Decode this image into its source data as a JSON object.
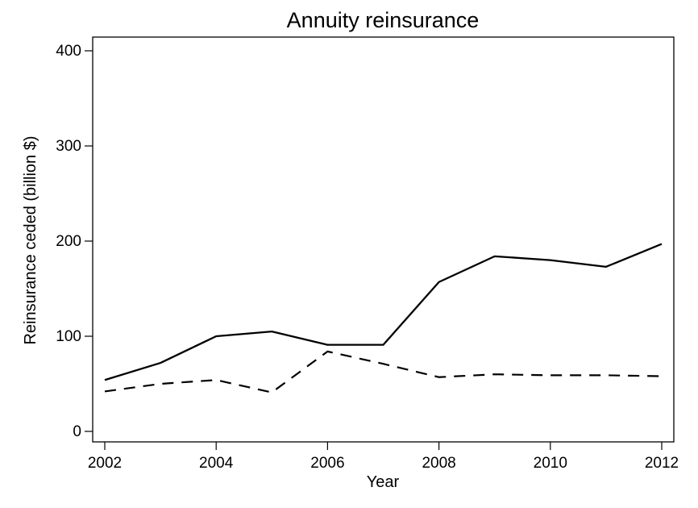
{
  "chart_data": {
    "type": "line",
    "title": "Annuity reinsurance",
    "xlabel": "Year",
    "ylabel": "Reinsurance ceded (billion $)",
    "xlim": [
      2002,
      2012
    ],
    "ylim": [
      0,
      400
    ],
    "x_ticks": [
      "2002",
      "2004",
      "2006",
      "2008",
      "2010",
      "2012"
    ],
    "y_ticks": [
      "0",
      "100",
      "200",
      "300",
      "400"
    ],
    "grid": false,
    "legend": "none",
    "x": [
      2002,
      2003,
      2004,
      2005,
      2006,
      2007,
      2008,
      2009,
      2010,
      2011,
      2012
    ],
    "series": [
      {
        "style": "solid",
        "color": "#000000",
        "values": [
          54,
          72,
          100,
          105,
          91,
          91,
          157,
          184,
          180,
          173,
          197
        ]
      },
      {
        "style": "dashed",
        "color": "#000000",
        "values": [
          42,
          50,
          54,
          41,
          84,
          71,
          57,
          60,
          59,
          59,
          58
        ]
      }
    ]
  }
}
